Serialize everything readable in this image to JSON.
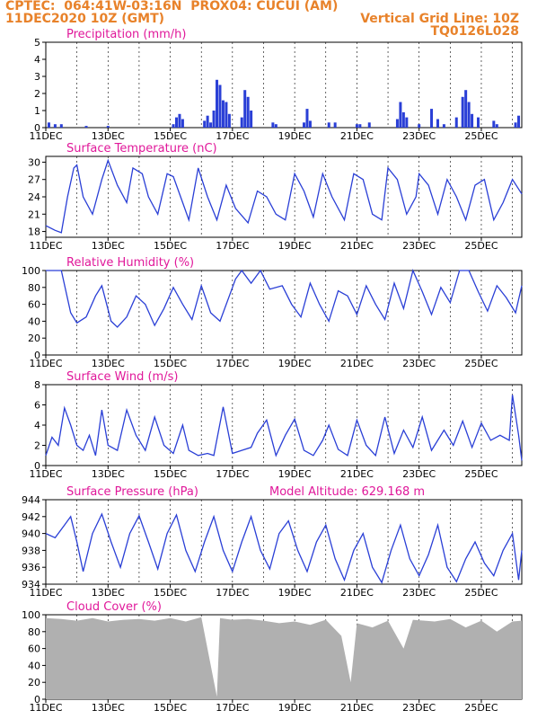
{
  "header": {
    "station": "CPTEC:  064:41W-03:16N  PROX04: CUCUI (AM)",
    "datetime": "11DEC2020 10Z (GMT)",
    "grid_note": "Vertical Grid Line: 10Z",
    "code": "TQ0126L028"
  },
  "x_ticks": [
    "11DEC",
    "13DEC",
    "15DEC",
    "17DEC",
    "19DEC",
    "21DEC",
    "23DEC",
    "25DEC"
  ],
  "colors": {
    "line": "#2a3fd6",
    "title": "#e0189a",
    "header": "#e8822a",
    "cloud": "#b0b0b0",
    "bars": "#2a3fd6"
  },
  "chart_data": [
    {
      "type": "bar",
      "title": "Precipitation (mm/h)",
      "ylim": [
        0,
        5
      ],
      "yticks": [
        "0",
        "1",
        "2",
        "3",
        "4",
        "5"
      ],
      "x_range_days": [
        0,
        15.3
      ],
      "values": [
        [
          0.1,
          0.3
        ],
        [
          0.3,
          0.2
        ],
        [
          0.5,
          0.2
        ],
        [
          1.3,
          0.1
        ],
        [
          2.0,
          0.1
        ],
        [
          4.1,
          0.2
        ],
        [
          4.2,
          0.6
        ],
        [
          4.3,
          0.8
        ],
        [
          4.4,
          0.5
        ],
        [
          5.1,
          0.4
        ],
        [
          5.2,
          0.7
        ],
        [
          5.3,
          0.3
        ],
        [
          5.4,
          1.0
        ],
        [
          5.5,
          2.8
        ],
        [
          5.6,
          2.5
        ],
        [
          5.7,
          1.6
        ],
        [
          5.8,
          1.5
        ],
        [
          5.9,
          0.8
        ],
        [
          6.3,
          0.6
        ],
        [
          6.4,
          2.2
        ],
        [
          6.5,
          1.8
        ],
        [
          6.6,
          1.0
        ],
        [
          7.3,
          0.3
        ],
        [
          7.4,
          0.2
        ],
        [
          8.3,
          0.3
        ],
        [
          8.4,
          1.1
        ],
        [
          8.5,
          0.4
        ],
        [
          9.1,
          0.3
        ],
        [
          9.3,
          0.3
        ],
        [
          10.0,
          0.2
        ],
        [
          10.1,
          0.2
        ],
        [
          10.4,
          0.3
        ],
        [
          11.3,
          0.5
        ],
        [
          11.4,
          1.5
        ],
        [
          11.5,
          0.9
        ],
        [
          11.6,
          0.6
        ],
        [
          12.0,
          0.2
        ],
        [
          12.4,
          1.1
        ],
        [
          12.6,
          0.5
        ],
        [
          12.8,
          0.2
        ],
        [
          13.2,
          0.6
        ],
        [
          13.4,
          1.8
        ],
        [
          13.5,
          2.2
        ],
        [
          13.6,
          1.5
        ],
        [
          13.7,
          0.8
        ],
        [
          13.9,
          0.6
        ],
        [
          14.4,
          0.4
        ],
        [
          14.5,
          0.2
        ],
        [
          15.1,
          0.3
        ],
        [
          15.2,
          0.7
        ]
      ]
    },
    {
      "type": "line",
      "title": "Surface Temperature (nC)",
      "ylim": [
        17,
        31
      ],
      "yticks": [
        "18",
        "21",
        "24",
        "27",
        "30"
      ],
      "ytick_values": [
        18,
        21,
        24,
        27,
        30
      ],
      "points": [
        [
          0,
          19
        ],
        [
          0.3,
          18.2
        ],
        [
          0.5,
          17.8
        ],
        [
          0.7,
          24
        ],
        [
          0.9,
          29
        ],
        [
          1.0,
          29.5
        ],
        [
          1.2,
          24
        ],
        [
          1.5,
          21
        ],
        [
          1.8,
          27
        ],
        [
          2.0,
          30.3
        ],
        [
          2.3,
          26
        ],
        [
          2.6,
          23
        ],
        [
          2.8,
          29
        ],
        [
          3.1,
          28
        ],
        [
          3.3,
          24
        ],
        [
          3.6,
          21
        ],
        [
          3.9,
          28
        ],
        [
          4.1,
          27.5
        ],
        [
          4.4,
          23
        ],
        [
          4.6,
          20
        ],
        [
          4.9,
          29
        ],
        [
          5.2,
          24
        ],
        [
          5.5,
          20
        ],
        [
          5.8,
          26
        ],
        [
          6.1,
          22
        ],
        [
          6.5,
          19.5
        ],
        [
          6.8,
          25
        ],
        [
          7.1,
          24
        ],
        [
          7.4,
          21
        ],
        [
          7.7,
          20
        ],
        [
          8.0,
          28
        ],
        [
          8.3,
          25
        ],
        [
          8.6,
          20.5
        ],
        [
          8.9,
          28
        ],
        [
          9.2,
          24
        ],
        [
          9.6,
          20
        ],
        [
          9.9,
          28
        ],
        [
          10.2,
          27
        ],
        [
          10.5,
          21
        ],
        [
          10.8,
          20
        ],
        [
          11.0,
          29
        ],
        [
          11.3,
          27
        ],
        [
          11.6,
          21
        ],
        [
          11.9,
          24
        ],
        [
          12.0,
          28
        ],
        [
          12.3,
          26
        ],
        [
          12.6,
          21
        ],
        [
          12.9,
          27
        ],
        [
          13.2,
          24
        ],
        [
          13.5,
          20
        ],
        [
          13.8,
          26
        ],
        [
          14.1,
          27
        ],
        [
          14.4,
          20
        ],
        [
          14.7,
          23
        ],
        [
          15.0,
          27
        ],
        [
          15.3,
          24.5
        ]
      ]
    },
    {
      "type": "line",
      "title": "Relative Humidity (%)",
      "ylim": [
        0,
        100
      ],
      "yticks": [
        "0",
        "20",
        "40",
        "60",
        "80",
        "100"
      ],
      "ytick_values": [
        0,
        20,
        40,
        60,
        80,
        100
      ],
      "points": [
        [
          0,
          100
        ],
        [
          0.5,
          100
        ],
        [
          0.8,
          50
        ],
        [
          1.0,
          38
        ],
        [
          1.3,
          45
        ],
        [
          1.6,
          70
        ],
        [
          1.8,
          82
        ],
        [
          2.1,
          40
        ],
        [
          2.3,
          33
        ],
        [
          2.6,
          45
        ],
        [
          2.9,
          70
        ],
        [
          3.2,
          60
        ],
        [
          3.5,
          35
        ],
        [
          3.8,
          55
        ],
        [
          4.1,
          80
        ],
        [
          4.4,
          60
        ],
        [
          4.7,
          42
        ],
        [
          5.0,
          82
        ],
        [
          5.3,
          50
        ],
        [
          5.6,
          40
        ],
        [
          5.9,
          70
        ],
        [
          6.1,
          90
        ],
        [
          6.3,
          100
        ],
        [
          6.6,
          85
        ],
        [
          6.9,
          100
        ],
        [
          7.2,
          78
        ],
        [
          7.6,
          82
        ],
        [
          7.9,
          60
        ],
        [
          8.2,
          45
        ],
        [
          8.5,
          85
        ],
        [
          8.8,
          60
        ],
        [
          9.1,
          40
        ],
        [
          9.4,
          76
        ],
        [
          9.7,
          70
        ],
        [
          10.0,
          48
        ],
        [
          10.3,
          82
        ],
        [
          10.6,
          60
        ],
        [
          10.9,
          42
        ],
        [
          11.2,
          85
        ],
        [
          11.5,
          55
        ],
        [
          11.8,
          100
        ],
        [
          12.1,
          75
        ],
        [
          12.4,
          48
        ],
        [
          12.7,
          80
        ],
        [
          13.0,
          62
        ],
        [
          13.3,
          100
        ],
        [
          13.6,
          100
        ],
        [
          13.9,
          75
        ],
        [
          14.2,
          52
        ],
        [
          14.5,
          82
        ],
        [
          14.8,
          68
        ],
        [
          15.1,
          50
        ],
        [
          15.3,
          82
        ]
      ]
    },
    {
      "type": "line",
      "title": "Surface Wind (m/s)",
      "ylim": [
        0,
        8
      ],
      "yticks": [
        "0",
        "2",
        "4",
        "6",
        "8"
      ],
      "ytick_values": [
        0,
        2,
        4,
        6,
        8
      ],
      "points": [
        [
          0,
          1
        ],
        [
          0.2,
          2.8
        ],
        [
          0.4,
          2
        ],
        [
          0.6,
          5.7
        ],
        [
          0.8,
          4
        ],
        [
          1.0,
          2
        ],
        [
          1.2,
          1.5
        ],
        [
          1.4,
          3
        ],
        [
          1.6,
          1
        ],
        [
          1.8,
          5.5
        ],
        [
          2.0,
          2
        ],
        [
          2.3,
          1.5
        ],
        [
          2.6,
          5.5
        ],
        [
          2.9,
          3
        ],
        [
          3.2,
          1.5
        ],
        [
          3.5,
          4.8
        ],
        [
          3.8,
          2
        ],
        [
          4.1,
          1.2
        ],
        [
          4.4,
          4
        ],
        [
          4.6,
          1.5
        ],
        [
          4.9,
          1
        ],
        [
          5.2,
          1.2
        ],
        [
          5.4,
          1
        ],
        [
          5.7,
          5.8
        ],
        [
          6.0,
          1.2
        ],
        [
          6.3,
          1.5
        ],
        [
          6.6,
          1.8
        ],
        [
          6.8,
          3.2
        ],
        [
          7.1,
          4.5
        ],
        [
          7.4,
          1
        ],
        [
          7.7,
          3
        ],
        [
          8.0,
          4.6
        ],
        [
          8.3,
          1.5
        ],
        [
          8.6,
          1
        ],
        [
          8.9,
          2.5
        ],
        [
          9.1,
          4
        ],
        [
          9.4,
          1.6
        ],
        [
          9.7,
          1
        ],
        [
          10.0,
          4.5
        ],
        [
          10.3,
          2
        ],
        [
          10.6,
          1
        ],
        [
          10.9,
          4.8
        ],
        [
          11.2,
          1.2
        ],
        [
          11.5,
          3.5
        ],
        [
          11.8,
          1.8
        ],
        [
          12.1,
          4.8
        ],
        [
          12.4,
          1.5
        ],
        [
          12.8,
          3.5
        ],
        [
          13.1,
          2
        ],
        [
          13.4,
          4.4
        ],
        [
          13.7,
          1.8
        ],
        [
          14.0,
          4.2
        ],
        [
          14.3,
          2.5
        ],
        [
          14.6,
          3
        ],
        [
          14.9,
          2.5
        ],
        [
          15.0,
          7
        ],
        [
          15.2,
          3
        ],
        [
          15.3,
          0.5
        ]
      ]
    },
    {
      "type": "line",
      "title": "Surface Pressure (hPa)",
      "annotation": "Model Altitude: 629.168 m",
      "ylim": [
        934,
        944
      ],
      "yticks": [
        "934",
        "936",
        "938",
        "940",
        "942",
        "944"
      ],
      "ytick_values": [
        934,
        936,
        938,
        940,
        942,
        944
      ],
      "points": [
        [
          0,
          940
        ],
        [
          0.3,
          939.5
        ],
        [
          0.6,
          941
        ],
        [
          0.8,
          942
        ],
        [
          1.0,
          939
        ],
        [
          1.2,
          935.5
        ],
        [
          1.5,
          940
        ],
        [
          1.8,
          942.3
        ],
        [
          2.1,
          939
        ],
        [
          2.4,
          936
        ],
        [
          2.7,
          940
        ],
        [
          3.0,
          942.1
        ],
        [
          3.3,
          939
        ],
        [
          3.6,
          935.8
        ],
        [
          3.9,
          940
        ],
        [
          4.2,
          942.2
        ],
        [
          4.5,
          938
        ],
        [
          4.8,
          935.5
        ],
        [
          5.1,
          939
        ],
        [
          5.4,
          942
        ],
        [
          5.7,
          938
        ],
        [
          6.0,
          935.5
        ],
        [
          6.3,
          939
        ],
        [
          6.6,
          942
        ],
        [
          6.9,
          938
        ],
        [
          7.2,
          935.8
        ],
        [
          7.5,
          940
        ],
        [
          7.8,
          941.5
        ],
        [
          8.1,
          938
        ],
        [
          8.4,
          935.5
        ],
        [
          8.7,
          939
        ],
        [
          9.0,
          941
        ],
        [
          9.3,
          937
        ],
        [
          9.6,
          934.5
        ],
        [
          9.9,
          938
        ],
        [
          10.2,
          940
        ],
        [
          10.5,
          936
        ],
        [
          10.8,
          934.2
        ],
        [
          11.1,
          938
        ],
        [
          11.4,
          941
        ],
        [
          11.7,
          937
        ],
        [
          12.0,
          935
        ],
        [
          12.3,
          937.5
        ],
        [
          12.6,
          941
        ],
        [
          12.9,
          936
        ],
        [
          13.2,
          934.3
        ],
        [
          13.5,
          937
        ],
        [
          13.8,
          939
        ],
        [
          14.1,
          936.5
        ],
        [
          14.4,
          935
        ],
        [
          14.7,
          938
        ],
        [
          15.0,
          940
        ],
        [
          15.2,
          934.5
        ],
        [
          15.3,
          938
        ]
      ]
    },
    {
      "type": "area",
      "title": "Cloud Cover (%)",
      "ylim": [
        0,
        100
      ],
      "yticks": [
        "0",
        "20",
        "40",
        "60",
        "80",
        "100"
      ],
      "ytick_values": [
        0,
        20,
        40,
        60,
        80,
        100
      ],
      "points": [
        [
          0,
          96
        ],
        [
          0.5,
          95
        ],
        [
          1.0,
          93
        ],
        [
          1.5,
          96
        ],
        [
          2.0,
          92
        ],
        [
          2.5,
          94
        ],
        [
          3.0,
          95
        ],
        [
          3.5,
          93
        ],
        [
          4.0,
          96
        ],
        [
          4.5,
          92
        ],
        [
          5.0,
          97
        ],
        [
          5.5,
          3
        ],
        [
          5.6,
          96
        ],
        [
          6.0,
          94
        ],
        [
          6.5,
          95
        ],
        [
          7.0,
          93
        ],
        [
          7.5,
          90
        ],
        [
          8.0,
          92
        ],
        [
          8.5,
          88
        ],
        [
          9.0,
          94
        ],
        [
          9.5,
          75
        ],
        [
          9.8,
          20
        ],
        [
          10.0,
          90
        ],
        [
          10.5,
          85
        ],
        [
          11.0,
          93
        ],
        [
          11.5,
          60
        ],
        [
          11.8,
          94
        ],
        [
          12.5,
          92
        ],
        [
          13.0,
          95
        ],
        [
          13.5,
          85
        ],
        [
          14.0,
          93
        ],
        [
          14.5,
          80
        ],
        [
          15.0,
          92
        ],
        [
          15.3,
          93
        ]
      ]
    }
  ]
}
